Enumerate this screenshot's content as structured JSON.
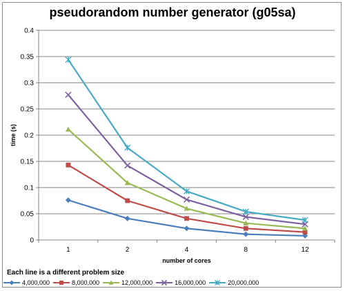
{
  "chart_data": {
    "type": "line",
    "title": "pseudorandom number generator (g05sa)",
    "xlabel": "number of cores",
    "ylabel": "time (s)",
    "categories": [
      "1",
      "2",
      "4",
      "8",
      "12"
    ],
    "ylim": [
      0,
      0.4
    ],
    "yticks": [
      "0",
      "0.05",
      "0.1",
      "0.15",
      "0.2",
      "0.25",
      "0.3",
      "0.35",
      "0.4"
    ],
    "grid": true,
    "legend_title": "Each line is a different  problem size",
    "legend_position": "bottom",
    "series": [
      {
        "name": "4,000,000",
        "color": "#4a7ebb",
        "marker": "diamond",
        "values": [
          0.076,
          0.041,
          0.022,
          0.011,
          0.008
        ]
      },
      {
        "name": "8,000,000",
        "color": "#be4b48",
        "marker": "square",
        "values": [
          0.143,
          0.075,
          0.041,
          0.022,
          0.015
        ]
      },
      {
        "name": "12,000,000",
        "color": "#98b954",
        "marker": "triangle",
        "values": [
          0.211,
          0.109,
          0.06,
          0.032,
          0.022
        ]
      },
      {
        "name": "16,000,000",
        "color": "#7d60a0",
        "marker": "x",
        "values": [
          0.277,
          0.142,
          0.077,
          0.044,
          0.03
        ]
      },
      {
        "name": "20,000,000",
        "color": "#46aac5",
        "marker": "star",
        "values": [
          0.344,
          0.176,
          0.093,
          0.054,
          0.038
        ]
      }
    ]
  }
}
